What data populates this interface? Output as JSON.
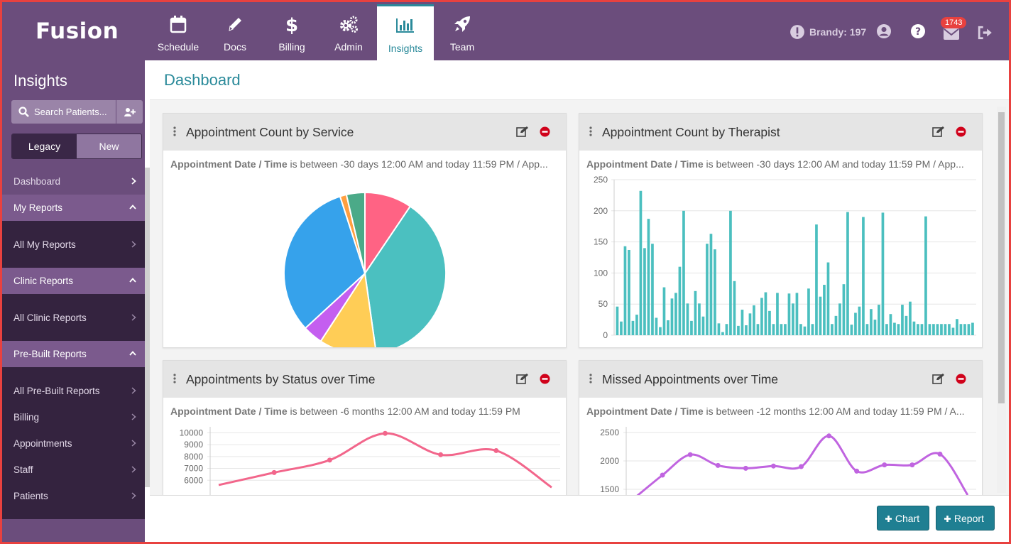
{
  "app": {
    "logo": "Fusion"
  },
  "nav": {
    "tabs": [
      {
        "label": "Schedule",
        "icon": "calendar-icon"
      },
      {
        "label": "Docs",
        "icon": "pencil-icon"
      },
      {
        "label": "Billing",
        "icon": "dollar-icon"
      },
      {
        "label": "Admin",
        "icon": "gears-icon"
      },
      {
        "label": "Insights",
        "icon": "bar-chart-icon",
        "active": true
      },
      {
        "label": "Team",
        "icon": "rocket-icon"
      }
    ],
    "user_label": "Brandy: 197",
    "mail_count": "1743"
  },
  "sidebar": {
    "title": "Insights",
    "search_placeholder": "Search Patients...",
    "toggle": {
      "legacy": "Legacy",
      "new": "New",
      "active": "Legacy"
    },
    "dashboard": "Dashboard",
    "my_reports": {
      "label": "My Reports",
      "items": [
        "All My Reports"
      ]
    },
    "clinic_reports": {
      "label": "Clinic Reports",
      "items": [
        "All Clinic Reports"
      ]
    },
    "prebuilt_reports": {
      "label": "Pre-Built Reports",
      "items": [
        "All Pre-Built Reports",
        "Billing",
        "Appointments",
        "Staff",
        "Patients"
      ]
    }
  },
  "main": {
    "title": "Dashboard",
    "cards": [
      {
        "title": "Appointment Count by Service",
        "filter_bold": "Appointment Date / Time",
        "filter_text": " is between -30 days 12:00 AM and today 11:59 PM / App..."
      },
      {
        "title": "Appointment Count by Therapist",
        "filter_bold": "Appointment Date / Time",
        "filter_text": " is between -30 days 12:00 AM and today 11:59 PM / App..."
      },
      {
        "title": "Appointments by Status over Time",
        "filter_bold": "Appointment Date / Time",
        "filter_text": " is between -6 months 12:00 AM and today 11:59 PM"
      },
      {
        "title": "Missed Appointments over Time",
        "filter_bold": "Appointment Date / Time",
        "filter_text": " is between -12 months 12:00 AM and today 11:59 PM / A..."
      }
    ]
  },
  "footer": {
    "chart_button": "Chart",
    "report_button": "Report"
  },
  "colors": {
    "brand": "#6b4d7c",
    "accent": "#2a8a9a",
    "bar": "#4bbfbf",
    "line_pink": "#f2668b",
    "line_purple": "#c064e0"
  },
  "chart_data": [
    {
      "type": "pie",
      "slices": [
        {
          "value": 9.5,
          "color": "#ff6384"
        },
        {
          "value": 38.5,
          "color": "#4bc0c0"
        },
        {
          "value": 11.5,
          "color": "#ffcd56"
        },
        {
          "value": 4,
          "color": "#c45ef0"
        },
        {
          "value": 32,
          "color": "#36a2eb"
        },
        {
          "value": 1.3,
          "color": "#ff9f40"
        },
        {
          "value": 3.7,
          "color": "#4baa88"
        }
      ]
    },
    {
      "type": "bar",
      "ylim": [
        0,
        250
      ],
      "yticks": [
        0,
        50,
        100,
        150,
        200,
        250
      ],
      "values": [
        46,
        22,
        143,
        137,
        23,
        33,
        232,
        140,
        187,
        147,
        28,
        13,
        77,
        24,
        59,
        68,
        110,
        200,
        51,
        23,
        71,
        51,
        30,
        147,
        163,
        138,
        19,
        5,
        18,
        200,
        87,
        15,
        41,
        16,
        35,
        48,
        18,
        60,
        69,
        39,
        18,
        68,
        18,
        18,
        67,
        51,
        68,
        18,
        14,
        75,
        18,
        178,
        62,
        81,
        117,
        18,
        31,
        51,
        82,
        198,
        17,
        36,
        46,
        190,
        18,
        42,
        25,
        49,
        197,
        18,
        34,
        20,
        18,
        49,
        31,
        54,
        22,
        18,
        18,
        191,
        18,
        18,
        18,
        18,
        18,
        18,
        12,
        26,
        18,
        18,
        18,
        20
      ]
    },
    {
      "type": "line",
      "ylim": [
        5000,
        10500
      ],
      "yticks": [
        6000,
        7000,
        8000,
        9000,
        10000
      ],
      "values": [
        5600,
        6650,
        7700,
        9950,
        8150,
        8500,
        5400
      ]
    },
    {
      "type": "line",
      "ylim": [
        1450,
        2600
      ],
      "yticks": [
        1500,
        2000,
        2500
      ],
      "values": [
        1350,
        1750,
        2110,
        1920,
        1870,
        1910,
        1900,
        2440,
        1820,
        1930,
        1930,
        2120,
        1400
      ]
    }
  ]
}
